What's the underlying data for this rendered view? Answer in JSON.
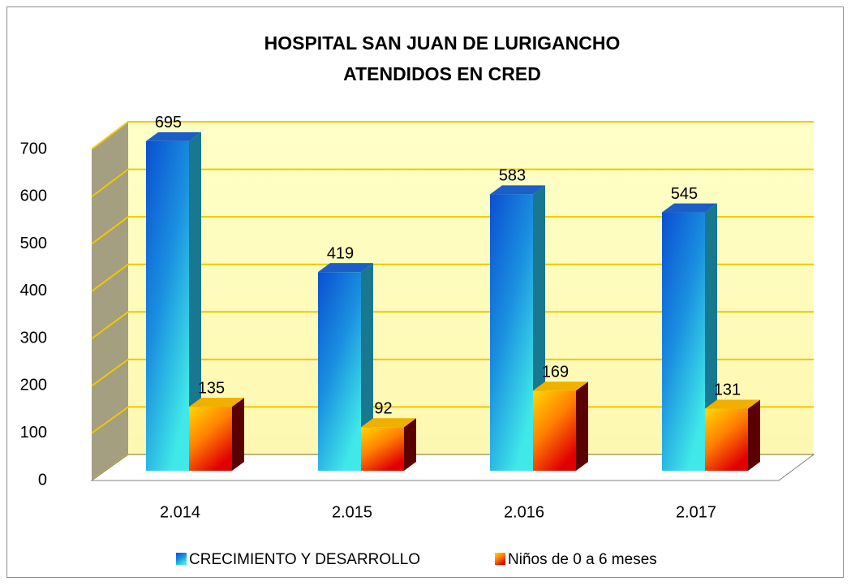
{
  "chart_data": {
    "type": "bar3d",
    "title": "HOSPITAL SAN JUAN DE LURIGANCHO",
    "subtitle": "ATENDIDOS EN CRED",
    "categories": [
      "2.014",
      "2.015",
      "2.016",
      "2.017"
    ],
    "series": [
      {
        "name": "CRECIMIENTO Y DESARROLLO",
        "color": "#1a8fe0",
        "values": [
          695,
          419,
          583,
          545
        ]
      },
      {
        "name": "Niños de 0 a 6 meses",
        "color": "#ff8000",
        "values": [
          135,
          92,
          169,
          131
        ]
      }
    ],
    "ylim": [
      0,
      700
    ],
    "yticks": [
      0,
      100,
      200,
      300,
      400,
      500,
      600,
      700
    ],
    "grid": true,
    "legend": "bottom"
  }
}
